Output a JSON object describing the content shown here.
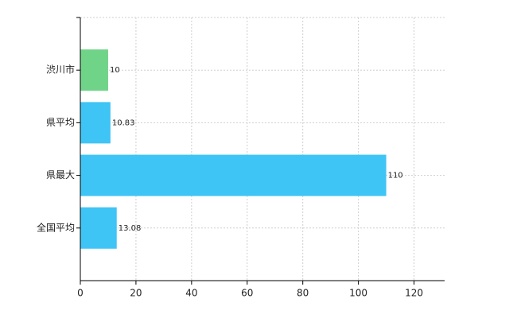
{
  "chart_data": {
    "type": "bar",
    "orientation": "horizontal",
    "categories": [
      "渋川市",
      "県平均",
      "県最大",
      "全国平均"
    ],
    "values": [
      10,
      10.83,
      110,
      13.08
    ],
    "colors": [
      "#70d488",
      "#3fc4f6",
      "#3fc4f6",
      "#3fc4f6"
    ],
    "xlim": [
      0,
      131
    ],
    "xticks": [
      0,
      20,
      40,
      60,
      80,
      100,
      120
    ],
    "grid": true
  }
}
